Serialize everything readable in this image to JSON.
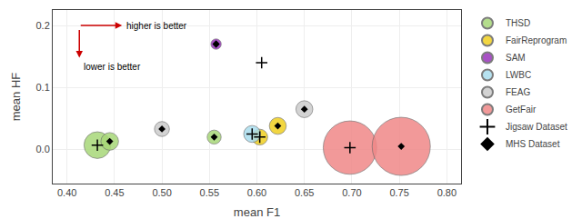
{
  "chart_data": {
    "type": "bubble",
    "xlabel": "mean F1",
    "ylabel": "mean HF",
    "xlim": [
      0.385,
      0.815
    ],
    "ylim": [
      -0.055,
      0.225
    ],
    "xticks": [
      {
        "value": 0.4,
        "label": "0.40"
      },
      0.45,
      {
        "value": 0.5,
        "label": "0.50"
      },
      0.55,
      {
        "value": 0.6,
        "label": "0.60"
      },
      0.65,
      {
        "value": 0.7,
        "label": "0.70"
      },
      0.75,
      {
        "value": 0.8,
        "label": "0.80"
      }
    ],
    "yticks": [
      {
        "value": 0.0,
        "label": "0.0"
      },
      0.1,
      0.2
    ],
    "grid": true,
    "legend": "upper right",
    "series": [
      {
        "name": "THSD",
        "type": "bubble",
        "color": "#a8d878",
        "x": [
          0.432,
          0.445,
          0.555
        ],
        "y": [
          0.007,
          0.013,
          0.02
        ],
        "sizes": [
          800,
          350,
          220
        ]
      },
      {
        "name": "FairReprogram",
        "type": "bubble",
        "color": "#f0d020",
        "x": [
          0.603,
          0.622
        ],
        "y": [
          0.02,
          0.038
        ],
        "sizes": [
          280,
          320
        ]
      },
      {
        "name": "SAM",
        "type": "bubble",
        "color": "#9933bb",
        "x": [
          0.557
        ],
        "y": [
          0.17
        ],
        "sizes": [
          120
        ]
      },
      {
        "name": "LWBC",
        "type": "bubble",
        "color": "#aaddee",
        "x": [
          0.595
        ],
        "y": [
          0.025
        ],
        "sizes": [
          320
        ]
      },
      {
        "name": "FEAG",
        "type": "bubble",
        "color": "#cccccc",
        "x": [
          0.5,
          0.65
        ],
        "y": [
          0.033,
          0.065
        ],
        "sizes": [
          250,
          320
        ]
      },
      {
        "name": "GetFair",
        "type": "bubble",
        "color": "#f08888",
        "x": [
          0.698,
          0.752
        ],
        "y": [
          0.003,
          0.005
        ],
        "sizes": [
          3200,
          3800
        ]
      },
      {
        "name": "Jigsaw Dataset",
        "type": "scatter",
        "marker": "plus",
        "color": "#000000",
        "x": [
          0.432,
          0.595,
          0.603,
          0.698,
          0.605
        ],
        "y": [
          0.007,
          0.025,
          0.02,
          0.003,
          0.14
        ]
      },
      {
        "name": "MHS Dataset",
        "type": "scatter",
        "marker": "diamond",
        "color": "#000000",
        "x": [
          0.445,
          0.5,
          0.555,
          0.622,
          0.557,
          0.65,
          0.752,
          0.557
        ],
        "y": [
          0.013,
          0.033,
          0.02,
          0.038,
          0.17,
          0.065,
          0.005,
          0.17
        ]
      }
    ],
    "annotations": [
      {
        "text": "higher is better",
        "x": 0.461,
        "y": 0.2,
        "anchor": "middle",
        "color": "#cc0000",
        "arrow": {
          "from": [
            0.413,
            0.2
          ],
          "to": [
            0.458,
            0.2
          ]
        }
      },
      {
        "text": "lower is better",
        "x": 0.416,
        "y": 0.144,
        "anchor": "top",
        "color": "#cc0000",
        "arrow": {
          "from": [
            0.413,
            0.195
          ],
          "to": [
            0.413,
            0.148
          ]
        }
      }
    ]
  }
}
